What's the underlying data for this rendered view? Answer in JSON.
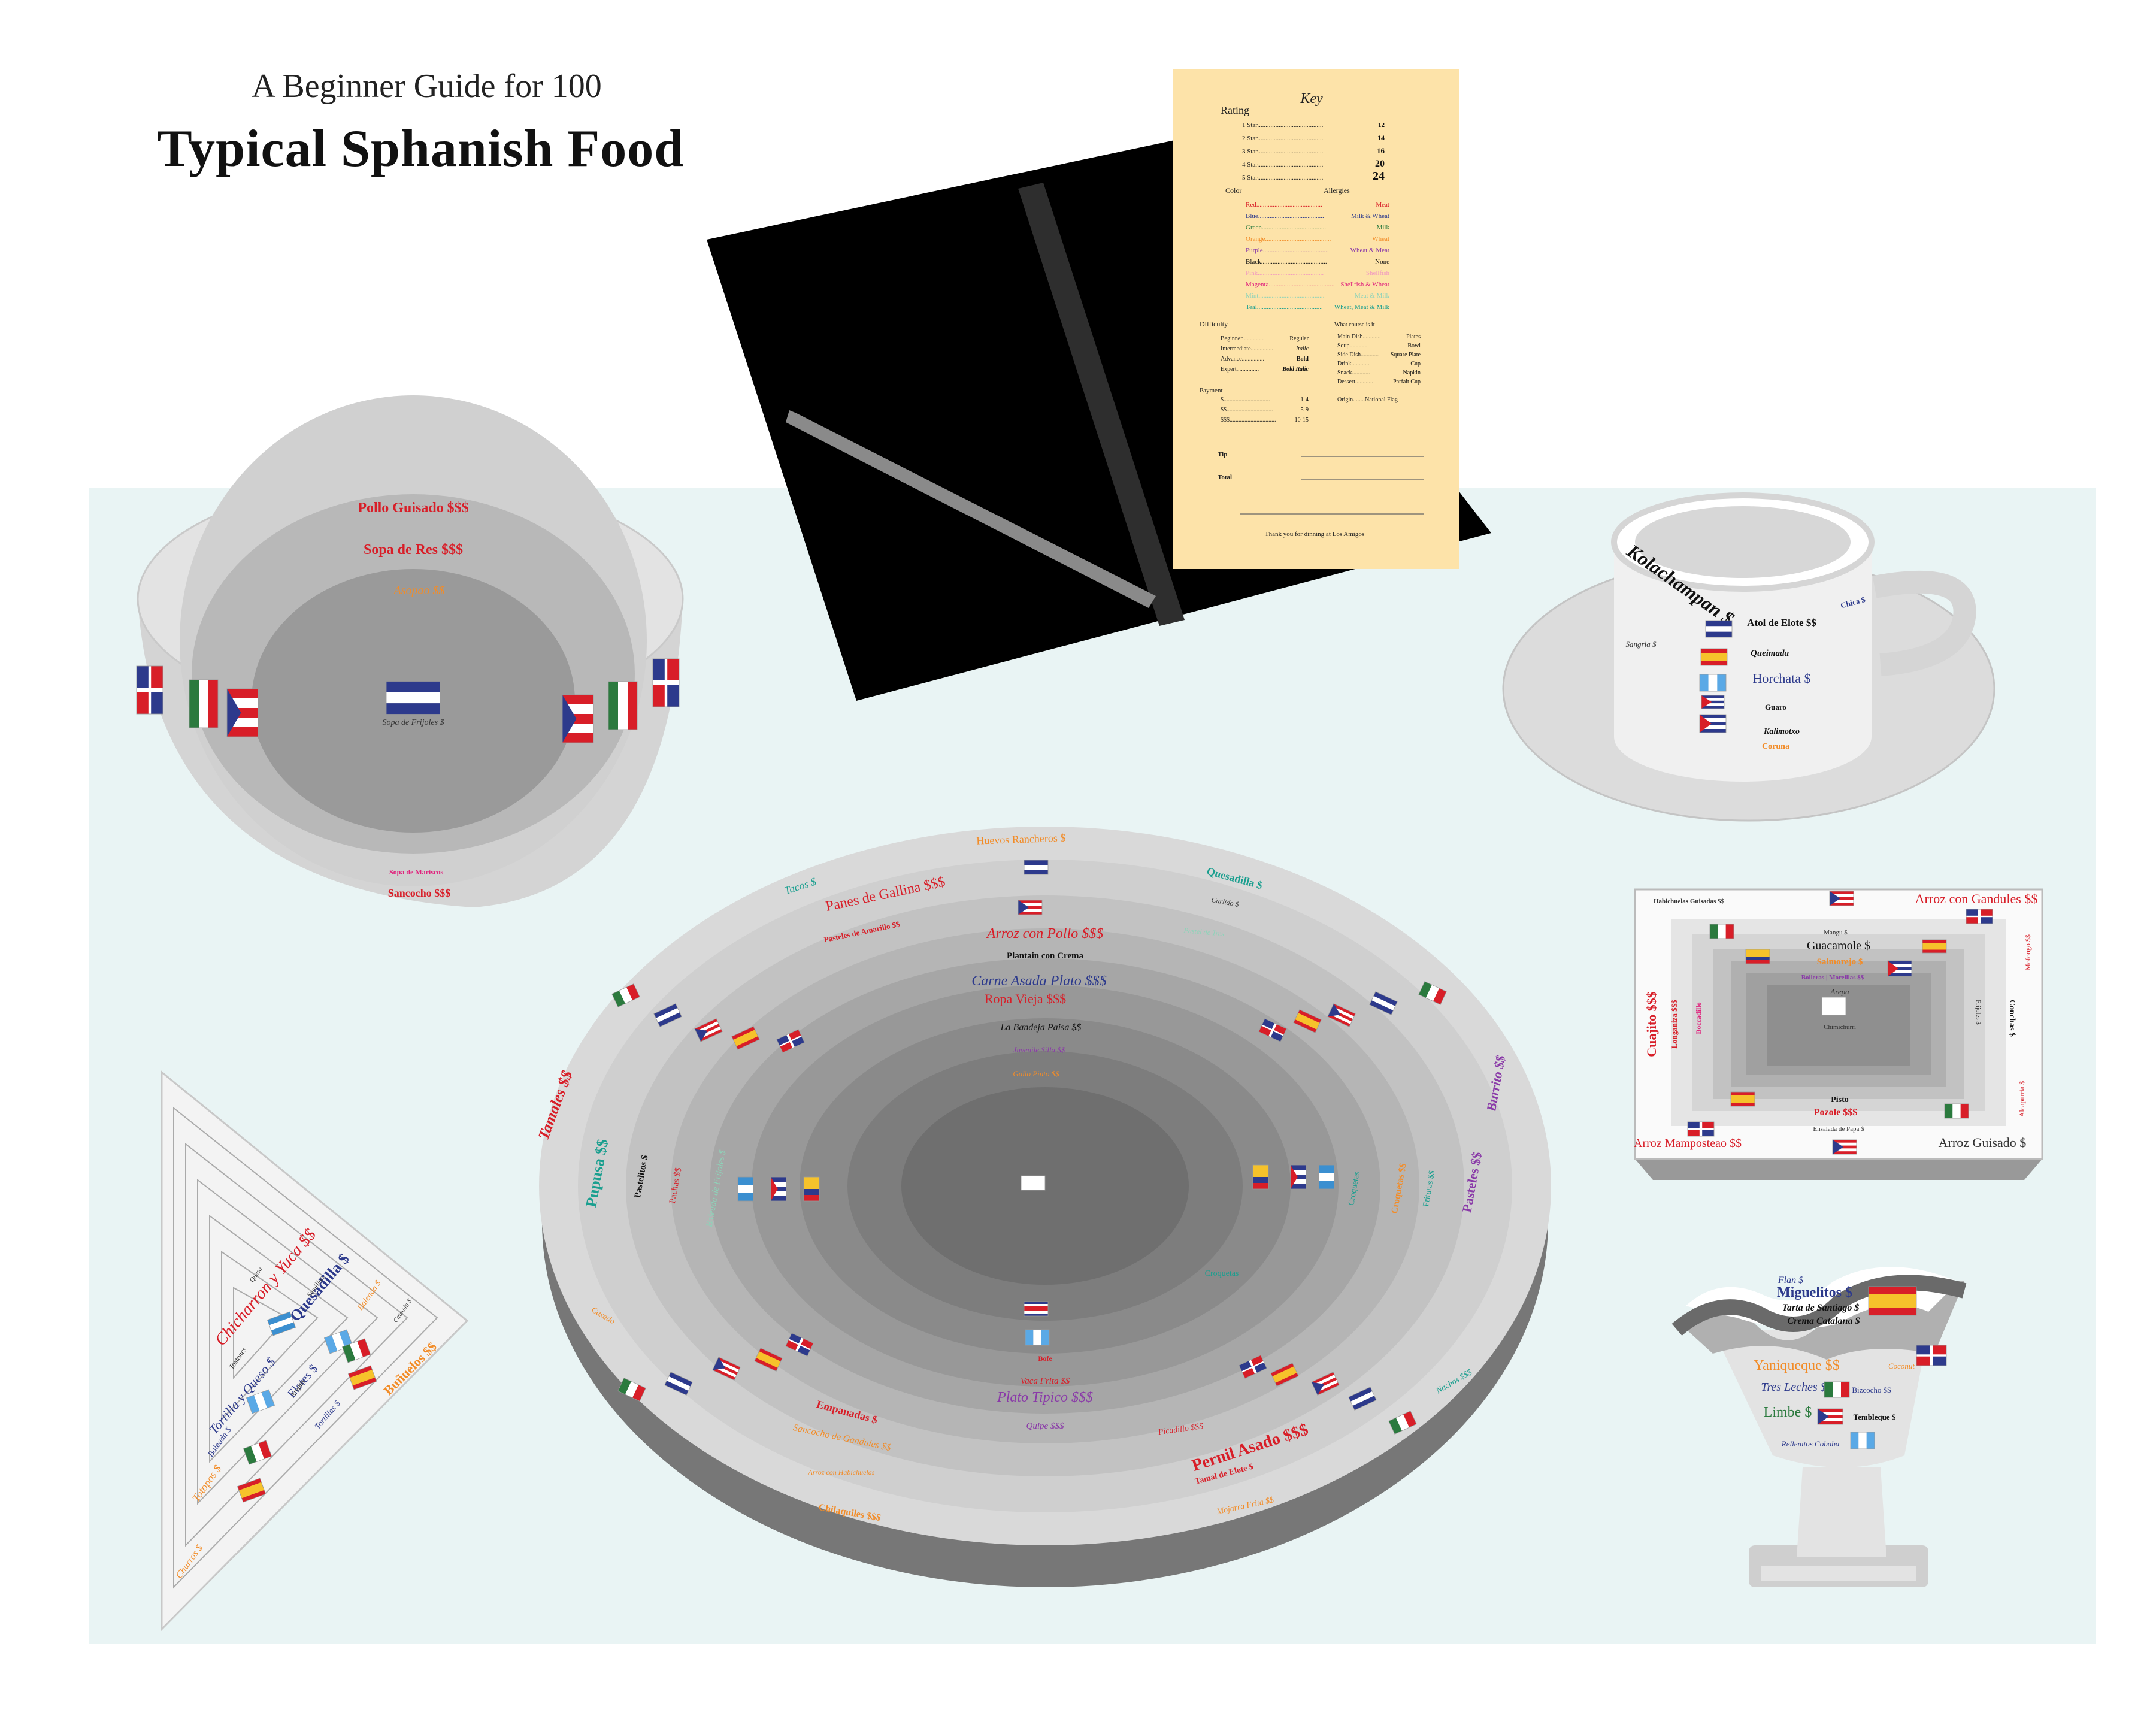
{
  "header": {
    "subtitle": "A Beginner Guide for 100",
    "title": "Typical Sphanish Food"
  },
  "colors": {
    "background": "#ffffff",
    "tablecloth": "#e9f4f4",
    "menu_card": "#fde3a9",
    "folder": "#000000",
    "meat_red": "#d81e28",
    "milk_wheat_blue": "#2d3a8c",
    "milk_green": "#2b7a3e",
    "wheat_orange": "#f28c28",
    "wheat_meat_purple": "#8a3aa8",
    "none_black": "#111111",
    "shellfish_pink": "#f19ac0",
    "shellfish_wheat_magenta": "#e0237d",
    "meat_wheat_mint": "#8ed3b9",
    "wheat_meat_milk_teal": "#1a9f8f"
  },
  "key": {
    "title": "Key",
    "rating_label": "Rating",
    "ratings": [
      {
        "label": "1 Star",
        "value": "12"
      },
      {
        "label": "2 Star",
        "value": "14"
      },
      {
        "label": "3 Star",
        "value": "16"
      },
      {
        "label": "4 Star",
        "value": "20"
      },
      {
        "label": "5 Star",
        "value": "24"
      }
    ],
    "color_label": "Color",
    "allergies_label": "Allergies",
    "colors": [
      {
        "label": "Red",
        "value": "Meat",
        "color": "#d81e28"
      },
      {
        "label": "Blue",
        "value": "Milk & Wheat",
        "color": "#2d3a8c"
      },
      {
        "label": "Green",
        "value": "Milk",
        "color": "#2b7a3e"
      },
      {
        "label": "Orange",
        "value": "Wheat",
        "color": "#f28c28"
      },
      {
        "label": "Purple",
        "value": "Wheat & Meat",
        "color": "#8a3aa8"
      },
      {
        "label": "Black",
        "value": "None",
        "color": "#111111"
      },
      {
        "label": "Pink",
        "value": "Shellfish",
        "color": "#f19ac0"
      },
      {
        "label": "Magenta",
        "value": "Shellfish & Wheat",
        "color": "#e0237d"
      },
      {
        "label": "Mint",
        "value": "Meat & Milk",
        "color": "#8ed3b9"
      },
      {
        "label": "Teal",
        "value": "Wheat, Meat & Milk",
        "color": "#1a9f8f"
      }
    ],
    "difficulty_label": "Difficulty",
    "difficulty": [
      {
        "label": "Beginner",
        "value": "Regular"
      },
      {
        "label": "Intermediate",
        "value": "Italic"
      },
      {
        "label": "Advance",
        "value": "Bold"
      },
      {
        "label": "Expert",
        "value": "Bold Italic"
      }
    ],
    "course_label": "What course is it",
    "courses": [
      {
        "label": "Main Dish",
        "value": "Plates"
      },
      {
        "label": "Soup",
        "value": "Bowl"
      },
      {
        "label": "Side Dish",
        "value": "Square Plate"
      },
      {
        "label": "Drink",
        "value": "Cup"
      },
      {
        "label": "Snack",
        "value": "Napkin"
      },
      {
        "label": "Dessert",
        "value": "Parfait Cup"
      }
    ],
    "payment_label": "Payment",
    "payment": [
      {
        "label": "$",
        "value": "1-4"
      },
      {
        "label": "$$",
        "value": "5-9"
      },
      {
        "label": "$$$",
        "value": "10-15"
      }
    ],
    "origin_label": "Origin",
    "origin_value": "National Flag",
    "tip_label": "Tip",
    "total_label": "Total",
    "thanks": "Thank you for dinning at Los Amigos"
  },
  "bowl": {
    "items": [
      {
        "text": "Pollo Guisado $$$",
        "color": "#d81e28"
      },
      {
        "text": "Sopa de Res $$$",
        "color": "#d81e28"
      },
      {
        "text": "Asopao $$",
        "color": "#f28c28"
      },
      {
        "text": "Sopa de Frijoles $",
        "color": "#333333"
      },
      {
        "text": "Sopa de Mariscos",
        "color": "#e0237d"
      },
      {
        "text": "Sancocho $$$",
        "color": "#d81e28"
      }
    ]
  },
  "cup": {
    "items": [
      {
        "text": "Kolachampan $",
        "color": "#111111"
      },
      {
        "text": "Atol de Elote $$",
        "color": "#111111"
      },
      {
        "text": "Chica $",
        "color": "#2d3a8c"
      },
      {
        "text": "Sangria $",
        "color": "#333333"
      },
      {
        "text": "Queimada",
        "color": "#111111"
      },
      {
        "text": "Horchata $",
        "color": "#2d3a8c"
      },
      {
        "text": "Guaro",
        "color": "#111111"
      },
      {
        "text": "Kalimotxo",
        "color": "#111111"
      },
      {
        "text": "Coruna",
        "color": "#f28c28"
      }
    ]
  },
  "plate": {
    "items": [
      {
        "text": "Huevos Rancheros $",
        "color": "#f28c28"
      },
      {
        "text": "Tacos $",
        "color": "#1a9f8f"
      },
      {
        "text": "Quesadilla $",
        "color": "#1a9f8f"
      },
      {
        "text": "Panes de Gallina $$$",
        "color": "#d81e28"
      },
      {
        "text": "Carlido $",
        "color": "#333333"
      },
      {
        "text": "Pasteles de Amarillo $$",
        "color": "#d81e28"
      },
      {
        "text": "Pastel de Tres",
        "color": "#8ed3b9"
      },
      {
        "text": "Arroz con Pollo $$$",
        "color": "#d81e28"
      },
      {
        "text": "Plantain con Crema",
        "color": "#111111"
      },
      {
        "text": "Carne Asada Plato $$$",
        "color": "#2d3a8c"
      },
      {
        "text": "Ropa Vieja $$$",
        "color": "#d81e28"
      },
      {
        "text": "La Bandeja Paisa $$",
        "color": "#111111"
      },
      {
        "text": "Juvenile Silla $$",
        "color": "#8a3aa8"
      },
      {
        "text": "Gallo Pinto $$",
        "color": "#f28c28"
      },
      {
        "text": "Tamales $$",
        "color": "#d81e28"
      },
      {
        "text": "Pupusa $$",
        "color": "#1a9f8f"
      },
      {
        "text": "Pastelitos $",
        "color": "#111111"
      },
      {
        "text": "Pachas $$",
        "color": "#d81e28"
      },
      {
        "text": "Baleada de Frijoles $",
        "color": "#8ed3b9"
      },
      {
        "text": "Burrito $$",
        "color": "#8a3aa8"
      },
      {
        "text": "Pasteles $$",
        "color": "#8a3aa8"
      },
      {
        "text": "Croquetas $$",
        "color": "#f28c28"
      },
      {
        "text": "Frituras $$",
        "color": "#1a9f8f"
      },
      {
        "text": "Croquetas",
        "color": "#1a9f8f"
      },
      {
        "text": "Casado",
        "color": "#f28c28"
      },
      {
        "text": "Bofe",
        "color": "#d81e28"
      },
      {
        "text": "Vaca Frita $$",
        "color": "#d81e28"
      },
      {
        "text": "Plato Tipico $$$",
        "color": "#8a3aa8"
      },
      {
        "text": "Quipe $$$",
        "color": "#8a3aa8"
      },
      {
        "text": "Empanadas $",
        "color": "#d81e28"
      },
      {
        "text": "Sancocho de Gandules $$",
        "color": "#f28c28"
      },
      {
        "text": "Arroz con Habichuelas",
        "color": "#f28c28"
      },
      {
        "text": "Chilaquiles $$$",
        "color": "#f28c28"
      },
      {
        "text": "Picadillo $$$",
        "color": "#d81e28"
      },
      {
        "text": "Pernil Asado $$$",
        "color": "#d81e28"
      },
      {
        "text": "Tamal de Elote $",
        "color": "#d81e28"
      },
      {
        "text": "Mojarra Frita $$",
        "color": "#f28c28"
      },
      {
        "text": "Nachos $$$",
        "color": "#1a9f8f"
      },
      {
        "text": "Croquetas",
        "color": "#1a9f8f"
      }
    ]
  },
  "napkin": {
    "items": [
      {
        "text": "Churros $",
        "color": "#f28c28"
      },
      {
        "text": "Totopos $",
        "color": "#f28c28"
      },
      {
        "text": "Buñuelos $$",
        "color": "#f28c28"
      },
      {
        "text": "Baleada $",
        "color": "#2d3a8c"
      },
      {
        "text": "Tortillas $",
        "color": "#2d3a8c"
      },
      {
        "text": "Tortilla y Queso $",
        "color": "#2d3a8c"
      },
      {
        "text": "Elotes $",
        "color": "#2d3a8c"
      },
      {
        "text": "Quesadilla $",
        "color": "#2d3a8c"
      },
      {
        "text": "Chicharron y Yuca $$",
        "color": "#d81e28"
      },
      {
        "text": "Baleada $",
        "color": "#f28c28"
      },
      {
        "text": "Cateada $",
        "color": "#333333"
      },
      {
        "text": "Tostones",
        "color": "#333333"
      },
      {
        "text": "Semillas",
        "color": "#333333"
      },
      {
        "text": "Arepas",
        "color": "#333333"
      },
      {
        "text": "Queso",
        "color": "#333333"
      }
    ]
  },
  "tray": {
    "items": [
      {
        "text": "Habichuelas Guisadas $$",
        "color": "#333333"
      },
      {
        "text": "Arroz con Gandules $$",
        "color": "#d81e28"
      },
      {
        "text": "Mangu $",
        "color": "#333333"
      },
      {
        "text": "Guacamole $",
        "color": "#111111"
      },
      {
        "text": "Salmorejo $",
        "color": "#f28c28"
      },
      {
        "text": "Bolleras | Moreillas $$",
        "color": "#8a3aa8"
      },
      {
        "text": "Arepa",
        "color": "#333333"
      },
      {
        "text": "Chimichurri",
        "color": "#333333"
      },
      {
        "text": "Pisto",
        "color": "#111111"
      },
      {
        "text": "Pozole $$$",
        "color": "#d81e28"
      },
      {
        "text": "Ensalada de Papa $",
        "color": "#333333"
      },
      {
        "text": "Arroz Mamposteao $$",
        "color": "#d81e28"
      },
      {
        "text": "Arroz Guisado $",
        "color": "#333333"
      },
      {
        "text": "Cuajito $$$",
        "color": "#d81e28"
      },
      {
        "text": "Longaniza $$$",
        "color": "#d81e28"
      },
      {
        "text": "Boccadillo",
        "color": "#e0237d"
      },
      {
        "text": "Mofongo $$",
        "color": "#d81e28"
      },
      {
        "text": "Conchas $",
        "color": "#111111"
      },
      {
        "text": "Frijoles $",
        "color": "#333333"
      },
      {
        "text": "Alcapurria $",
        "color": "#d81e28"
      }
    ]
  },
  "parfait": {
    "items": [
      {
        "text": "Flan $",
        "color": "#2d3a8c"
      },
      {
        "text": "Miguelitos $",
        "color": "#2d3a8c"
      },
      {
        "text": "Tarta de Santiago $",
        "color": "#111111"
      },
      {
        "text": "Crema Catalana $",
        "color": "#111111"
      },
      {
        "text": "Yaniqueque $$",
        "color": "#f28c28"
      },
      {
        "text": "Coconut",
        "color": "#f28c28"
      },
      {
        "text": "Tres Leches $",
        "color": "#2d3a8c"
      },
      {
        "text": "Bizcocho $$",
        "color": "#2d3a8c"
      },
      {
        "text": "Limbe $",
        "color": "#2b7a3e"
      },
      {
        "text": "Tembleque $",
        "color": "#111111"
      },
      {
        "text": "Rellenitos Cobaba",
        "color": "#2d3a8c"
      }
    ]
  }
}
